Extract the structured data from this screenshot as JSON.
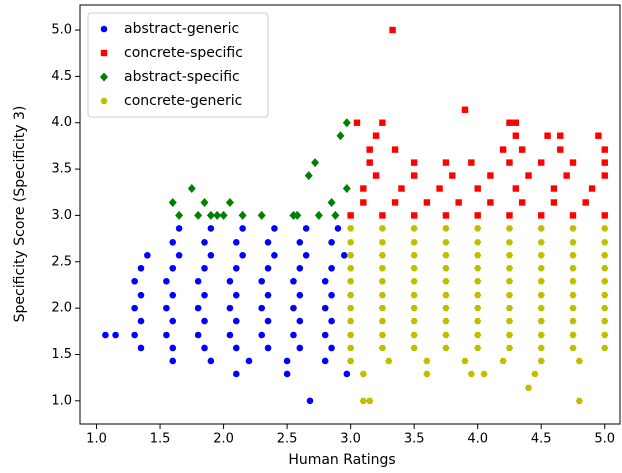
{
  "chart_data": {
    "type": "scatter",
    "x_label": "Human Ratings",
    "y_label": "Specificity Score (Specificity 3)",
    "xlim": [
      0.87,
      5.12
    ],
    "ylim": [
      0.75,
      5.27
    ],
    "xticks": [
      {
        "value": 1,
        "label": "1.0"
      },
      1.5,
      {
        "value": 2,
        "label": "2.0"
      },
      2.5,
      {
        "value": 3,
        "label": "3.0"
      },
      3.5,
      {
        "value": 4,
        "label": "4.0"
      },
      4.5,
      {
        "value": 5,
        "label": "5.0"
      }
    ],
    "yticks": [
      {
        "value": 1,
        "label": "1.0"
      },
      1.5,
      {
        "value": 2,
        "label": "2.0"
      },
      2.5,
      {
        "value": 3,
        "label": "3.0"
      },
      3.5,
      {
        "value": 4,
        "label": "4.0"
      },
      4.5,
      {
        "value": 5,
        "label": "5.0"
      }
    ],
    "legend": "upper left",
    "grid": false,
    "series": [
      {
        "name": "abstract-generic",
        "color": "#0000ff",
        "marker": "circle",
        "points": [
          [
            1.65,
            2.86
          ],
          [
            1.9,
            2.86
          ],
          [
            2.15,
            2.86
          ],
          [
            2.4,
            2.86
          ],
          [
            2.65,
            2.86
          ],
          [
            2.9,
            2.86
          ],
          [
            1.6,
            2.71
          ],
          [
            1.85,
            2.71
          ],
          [
            2.1,
            2.71
          ],
          [
            2.35,
            2.71
          ],
          [
            2.6,
            2.71
          ],
          [
            2.85,
            2.71
          ],
          [
            1.4,
            2.57
          ],
          [
            1.65,
            2.57
          ],
          [
            1.9,
            2.57
          ],
          [
            2.15,
            2.57
          ],
          [
            2.4,
            2.57
          ],
          [
            2.65,
            2.57
          ],
          [
            2.95,
            2.57
          ],
          [
            1.35,
            2.43
          ],
          [
            1.6,
            2.43
          ],
          [
            1.85,
            2.43
          ],
          [
            2.1,
            2.43
          ],
          [
            2.35,
            2.43
          ],
          [
            2.6,
            2.43
          ],
          [
            2.85,
            2.43
          ],
          [
            1.3,
            2.29
          ],
          [
            1.55,
            2.29
          ],
          [
            1.8,
            2.29
          ],
          [
            2.05,
            2.29
          ],
          [
            2.3,
            2.29
          ],
          [
            2.55,
            2.29
          ],
          [
            2.8,
            2.29
          ],
          [
            1.35,
            2.14
          ],
          [
            1.6,
            2.14
          ],
          [
            1.85,
            2.14
          ],
          [
            2.1,
            2.14
          ],
          [
            2.35,
            2.14
          ],
          [
            2.6,
            2.14
          ],
          [
            2.85,
            2.14
          ],
          [
            1.3,
            2.0
          ],
          [
            1.55,
            2.0
          ],
          [
            1.8,
            2.0
          ],
          [
            2.05,
            2.0
          ],
          [
            2.3,
            2.0
          ],
          [
            2.55,
            2.0
          ],
          [
            2.8,
            2.0
          ],
          [
            1.35,
            1.86
          ],
          [
            1.6,
            1.86
          ],
          [
            1.85,
            1.86
          ],
          [
            2.1,
            1.86
          ],
          [
            2.35,
            1.86
          ],
          [
            2.6,
            1.86
          ],
          [
            2.85,
            1.86
          ],
          [
            1.3,
            1.71
          ],
          [
            1.55,
            1.71
          ],
          [
            1.8,
            1.71
          ],
          [
            2.05,
            1.71
          ],
          [
            2.3,
            1.71
          ],
          [
            2.55,
            1.71
          ],
          [
            2.8,
            1.71
          ],
          [
            1.35,
            1.57
          ],
          [
            1.6,
            1.57
          ],
          [
            1.85,
            1.57
          ],
          [
            2.1,
            1.57
          ],
          [
            2.35,
            1.57
          ],
          [
            2.6,
            1.57
          ],
          [
            2.85,
            1.57
          ],
          [
            1.6,
            1.43
          ],
          [
            1.9,
            1.43
          ],
          [
            2.2,
            1.43
          ],
          [
            2.5,
            1.43
          ],
          [
            2.8,
            1.43
          ],
          [
            1.07,
            1.71
          ],
          [
            1.15,
            1.71
          ],
          [
            2.1,
            1.29
          ],
          [
            2.5,
            1.29
          ],
          [
            2.68,
            1.0
          ],
          [
            2.97,
            1.29
          ]
        ]
      },
      {
        "name": "concrete-specific",
        "color": "#ff0000",
        "marker": "square",
        "points": [
          [
            3.0,
            3.0
          ],
          [
            3.25,
            3.0
          ],
          [
            3.5,
            3.0
          ],
          [
            3.75,
            3.0
          ],
          [
            4.0,
            3.0
          ],
          [
            4.25,
            3.0
          ],
          [
            4.5,
            3.0
          ],
          [
            4.75,
            3.0
          ],
          [
            5.0,
            3.0
          ],
          [
            3.1,
            3.14
          ],
          [
            3.35,
            3.14
          ],
          [
            3.6,
            3.14
          ],
          [
            3.85,
            3.14
          ],
          [
            4.1,
            3.14
          ],
          [
            4.35,
            3.14
          ],
          [
            4.6,
            3.14
          ],
          [
            4.85,
            3.14
          ],
          [
            3.1,
            3.29
          ],
          [
            3.4,
            3.29
          ],
          [
            3.7,
            3.29
          ],
          [
            4.0,
            3.29
          ],
          [
            4.3,
            3.29
          ],
          [
            4.6,
            3.29
          ],
          [
            4.9,
            3.29
          ],
          [
            3.2,
            3.43
          ],
          [
            3.5,
            3.43
          ],
          [
            3.8,
            3.43
          ],
          [
            4.1,
            3.43
          ],
          [
            4.4,
            3.43
          ],
          [
            4.7,
            3.43
          ],
          [
            5.0,
            3.43
          ],
          [
            3.15,
            3.57
          ],
          [
            3.5,
            3.57
          ],
          [
            3.75,
            3.57
          ],
          [
            3.95,
            3.57
          ],
          [
            4.25,
            3.57
          ],
          [
            4.5,
            3.57
          ],
          [
            4.75,
            3.57
          ],
          [
            5.0,
            3.57
          ],
          [
            3.15,
            3.71
          ],
          [
            3.35,
            3.71
          ],
          [
            4.2,
            3.71
          ],
          [
            4.35,
            3.71
          ],
          [
            4.65,
            3.71
          ],
          [
            5.0,
            3.71
          ],
          [
            3.2,
            3.86
          ],
          [
            4.3,
            3.86
          ],
          [
            4.55,
            3.86
          ],
          [
            4.65,
            3.86
          ],
          [
            4.95,
            3.86
          ],
          [
            3.05,
            4.0
          ],
          [
            3.25,
            4.0
          ],
          [
            4.25,
            4.0
          ],
          [
            4.3,
            4.0
          ],
          [
            3.9,
            4.14
          ],
          [
            3.33,
            5.0
          ]
        ]
      },
      {
        "name": "abstract-specific",
        "color": "#008000",
        "marker": "diamond",
        "points": [
          [
            1.6,
            3.14
          ],
          [
            1.65,
            3.0
          ],
          [
            1.75,
            3.29
          ],
          [
            1.8,
            3.0
          ],
          [
            1.85,
            3.14
          ],
          [
            1.9,
            3.0
          ],
          [
            1.95,
            3.0
          ],
          [
            2.0,
            3.0
          ],
          [
            2.05,
            3.14
          ],
          [
            2.15,
            3.0
          ],
          [
            2.3,
            3.0
          ],
          [
            2.55,
            3.0
          ],
          [
            2.58,
            3.0
          ],
          [
            2.67,
            3.43
          ],
          [
            2.72,
            3.57
          ],
          [
            2.75,
            3.0
          ],
          [
            2.85,
            3.14
          ],
          [
            2.88,
            3.0
          ],
          [
            2.92,
            3.86
          ],
          [
            2.97,
            4.0
          ],
          [
            2.97,
            3.29
          ]
        ]
      },
      {
        "name": "concrete-generic",
        "color": "#bfbf00",
        "marker": "hexagon",
        "points": [
          [
            3.0,
            2.86
          ],
          [
            3.25,
            2.86
          ],
          [
            3.5,
            2.86
          ],
          [
            3.75,
            2.86
          ],
          [
            4.0,
            2.86
          ],
          [
            4.25,
            2.86
          ],
          [
            4.5,
            2.86
          ],
          [
            4.75,
            2.86
          ],
          [
            5.0,
            2.86
          ],
          [
            3.0,
            2.71
          ],
          [
            3.25,
            2.71
          ],
          [
            3.5,
            2.71
          ],
          [
            3.75,
            2.71
          ],
          [
            4.0,
            2.71
          ],
          [
            4.25,
            2.71
          ],
          [
            4.5,
            2.71
          ],
          [
            4.75,
            2.71
          ],
          [
            5.0,
            2.71
          ],
          [
            3.0,
            2.57
          ],
          [
            3.25,
            2.57
          ],
          [
            3.5,
            2.57
          ],
          [
            3.75,
            2.57
          ],
          [
            4.0,
            2.57
          ],
          [
            4.25,
            2.57
          ],
          [
            4.5,
            2.57
          ],
          [
            4.75,
            2.57
          ],
          [
            5.0,
            2.57
          ],
          [
            3.0,
            2.43
          ],
          [
            3.25,
            2.43
          ],
          [
            3.5,
            2.43
          ],
          [
            3.75,
            2.43
          ],
          [
            4.0,
            2.43
          ],
          [
            4.25,
            2.43
          ],
          [
            4.5,
            2.43
          ],
          [
            4.75,
            2.43
          ],
          [
            5.0,
            2.43
          ],
          [
            3.0,
            2.29
          ],
          [
            3.25,
            2.29
          ],
          [
            3.5,
            2.29
          ],
          [
            3.75,
            2.29
          ],
          [
            4.0,
            2.29
          ],
          [
            4.25,
            2.29
          ],
          [
            4.5,
            2.29
          ],
          [
            4.75,
            2.29
          ],
          [
            5.0,
            2.29
          ],
          [
            3.0,
            2.14
          ],
          [
            3.25,
            2.14
          ],
          [
            3.5,
            2.14
          ],
          [
            3.75,
            2.14
          ],
          [
            4.0,
            2.14
          ],
          [
            4.25,
            2.14
          ],
          [
            4.5,
            2.14
          ],
          [
            4.75,
            2.14
          ],
          [
            5.0,
            2.14
          ],
          [
            3.0,
            2.0
          ],
          [
            3.25,
            2.0
          ],
          [
            3.5,
            2.0
          ],
          [
            3.75,
            2.0
          ],
          [
            4.0,
            2.0
          ],
          [
            4.25,
            2.0
          ],
          [
            4.5,
            2.0
          ],
          [
            4.75,
            2.0
          ],
          [
            5.0,
            2.0
          ],
          [
            3.0,
            1.86
          ],
          [
            3.25,
            1.86
          ],
          [
            3.5,
            1.86
          ],
          [
            3.75,
            1.86
          ],
          [
            4.0,
            1.86
          ],
          [
            4.25,
            1.86
          ],
          [
            4.5,
            1.86
          ],
          [
            4.75,
            1.86
          ],
          [
            5.0,
            1.86
          ],
          [
            3.0,
            1.71
          ],
          [
            3.25,
            1.71
          ],
          [
            3.5,
            1.71
          ],
          [
            3.75,
            1.71
          ],
          [
            4.0,
            1.71
          ],
          [
            4.25,
            1.71
          ],
          [
            4.5,
            1.71
          ],
          [
            4.75,
            1.71
          ],
          [
            5.0,
            1.71
          ],
          [
            3.0,
            1.57
          ],
          [
            3.25,
            1.57
          ],
          [
            3.5,
            1.57
          ],
          [
            3.75,
            1.57
          ],
          [
            4.0,
            1.57
          ],
          [
            4.25,
            1.57
          ],
          [
            4.5,
            1.57
          ],
          [
            4.75,
            1.57
          ],
          [
            5.0,
            1.57
          ],
          [
            3.0,
            1.43
          ],
          [
            3.3,
            1.43
          ],
          [
            3.6,
            1.43
          ],
          [
            3.9,
            1.43
          ],
          [
            4.2,
            1.43
          ],
          [
            4.5,
            1.43
          ],
          [
            4.8,
            1.43
          ],
          [
            3.1,
            1.0
          ],
          [
            3.15,
            1.0
          ],
          [
            3.1,
            1.29
          ],
          [
            3.6,
            1.29
          ],
          [
            3.95,
            1.29
          ],
          [
            4.05,
            1.29
          ],
          [
            4.45,
            1.29
          ],
          [
            4.4,
            1.14
          ],
          [
            4.8,
            1.0
          ]
        ]
      }
    ]
  }
}
